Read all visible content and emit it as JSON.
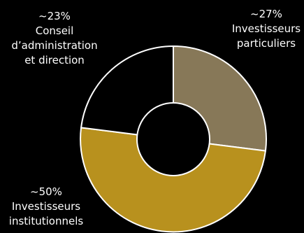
{
  "chart_data": {
    "type": "pie",
    "variant": "donut",
    "background": "#000000",
    "slice_border_color": "#ffffff",
    "slices": [
      {
        "value": 27,
        "percent_label": "~27%",
        "label_lines": [
          "Investisseurs",
          "particuliers"
        ],
        "color": "#877858"
      },
      {
        "value": 50,
        "percent_label": "~50%",
        "label_lines": [
          "Investisseurs",
          "institutionnels"
        ],
        "color": "#b8911e"
      },
      {
        "value": 23,
        "percent_label": "~23%",
        "label_lines": [
          "Conseil",
          "d’administration",
          "et direction"
        ],
        "color": "#000000"
      }
    ]
  }
}
